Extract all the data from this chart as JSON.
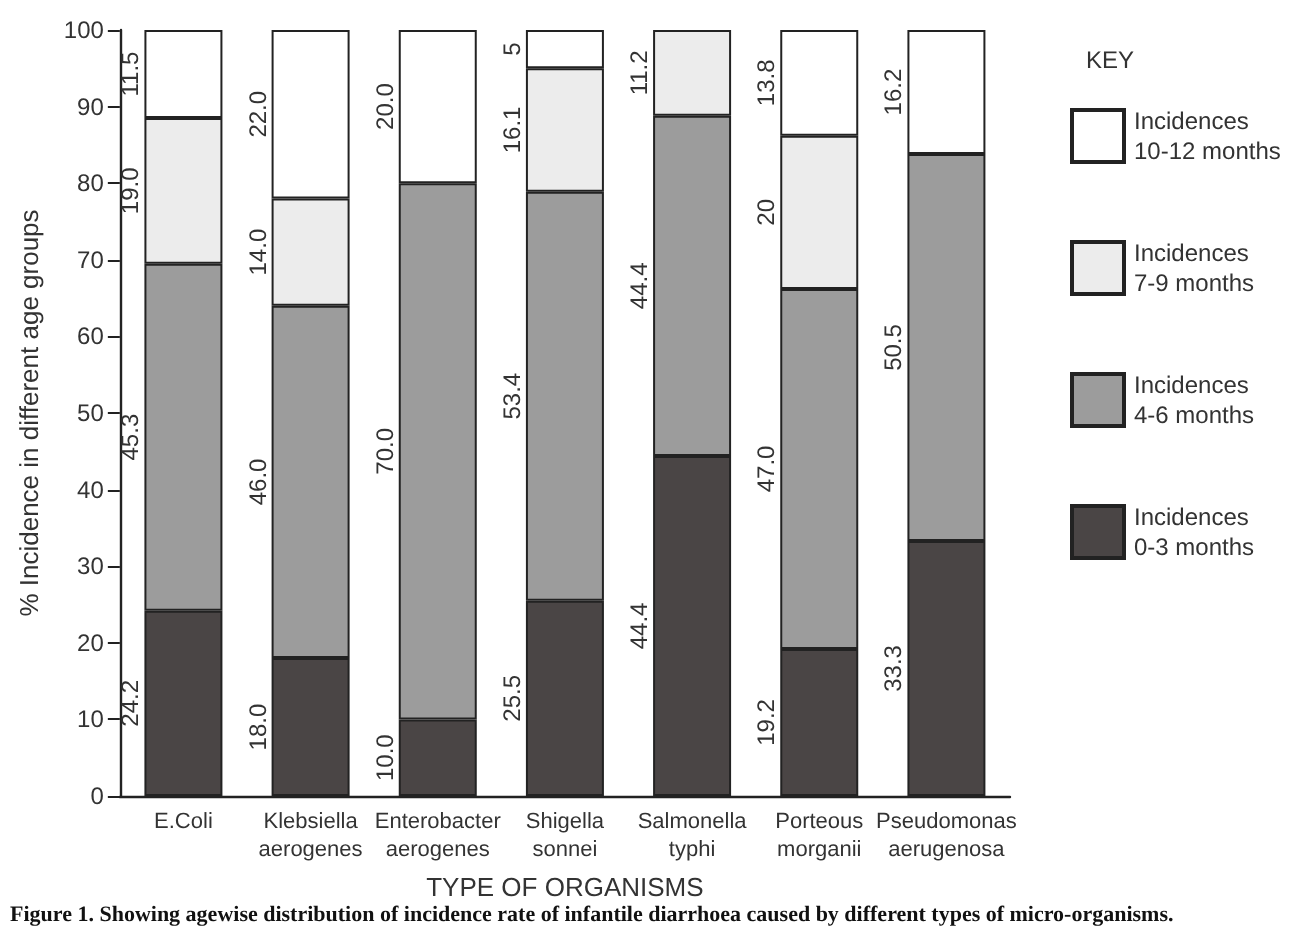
{
  "chart_data": {
    "type": "bar",
    "stacked": true,
    "xlabel": "TYPE OF ORGANISMS",
    "ylabel": "% Incidence in different age groups",
    "legend_title": "KEY",
    "legend": "top right",
    "categories": [
      "E.Coli",
      "Klebsiella aerogenes",
      "Enterobacter aerogenes",
      "Shigella sonnei",
      "Salmonella typhi",
      "Porteous morganii",
      "Pseudomonas aerugenosa"
    ],
    "series": [
      {
        "name": "Incidences 0-3 months",
        "color": "#4a4545",
        "values": [
          24.2,
          18.0,
          10.0,
          25.5,
          44.4,
          19.2,
          33.3
        ],
        "value_labels": [
          "24.2",
          "18.0",
          "10.0",
          "25.5",
          "44.4",
          "19.2",
          "33.3"
        ]
      },
      {
        "name": "Incidences 4-6 months",
        "color": "#9c9c9c",
        "values": [
          45.3,
          46.0,
          70.0,
          53.4,
          44.4,
          47.0,
          50.5
        ],
        "value_labels": [
          "45.3",
          "46.0",
          "70.0",
          "53.4",
          "44.4",
          "47.0",
          "50.5"
        ]
      },
      {
        "name": "Incidences 7-9 months",
        "color": "#ececec",
        "values": [
          19.0,
          14.0,
          null,
          16.1,
          11.2,
          20,
          null
        ],
        "value_labels": [
          "19.0",
          "14.0",
          null,
          "16.1",
          "11.2",
          "20",
          null
        ]
      },
      {
        "name": "Incidences 10-12 months",
        "color": "#ffffff",
        "values": [
          11.5,
          22.0,
          20.0,
          5,
          null,
          13.8,
          16.2
        ],
        "value_labels": [
          "11.5",
          "22.0",
          "20.0",
          "5",
          null,
          "13.8",
          "16.2"
        ]
      }
    ],
    "ylim": [
      0,
      100
    ],
    "yticks": [
      0,
      10,
      20,
      30,
      40,
      50,
      60,
      70,
      80,
      90,
      100
    ],
    "annotations": [
      "Figure 1. Showing agewise distribution of incidence rate of infantile diarrhoea caused by different types of micro-organisms."
    ]
  }
}
